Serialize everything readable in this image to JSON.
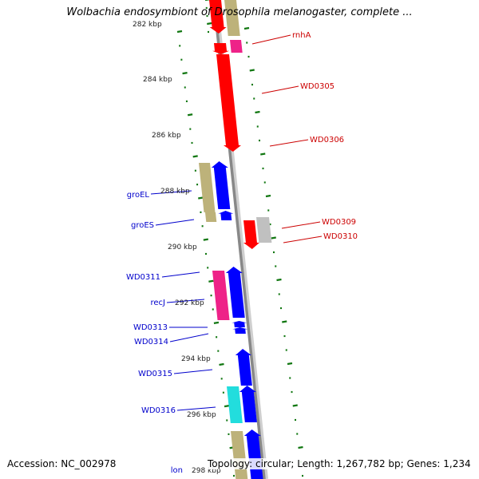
{
  "title": "Wolbachia endosymbiont of Drosophila melanogaster, complete ...",
  "footer": {
    "accession": "Accession: NC_002978",
    "summary": "Topology: circular; Length: 1,267,782 bp; Genes: 1,234"
  },
  "colors": {
    "forward_label": "#cc0000",
    "reverse_label": "#0000cc",
    "backbone": "#888888",
    "ticks": "#117711",
    "red": "#ff0000",
    "blue": "#0000ff",
    "khaki": "#bdb27a",
    "magenta": "#ee2288",
    "cyan": "#22dddd",
    "grey": "#c0c0c0"
  },
  "scale_labels": [
    "282 kbp",
    "284 kbp",
    "286 kbp",
    "288 kbp",
    "290 kbp",
    "292 kbp",
    "294 kbp",
    "296 kbp",
    "298 kbp"
  ],
  "forward_gene_labels": [
    "rnhA",
    "WD0305",
    "WD0306",
    "WD0309",
    "WD0310"
  ],
  "reverse_gene_labels": [
    "groEL",
    "groES",
    "WD0311",
    "recJ",
    "WD0313",
    "WD0314",
    "WD0315",
    "WD0316",
    "lon"
  ]
}
